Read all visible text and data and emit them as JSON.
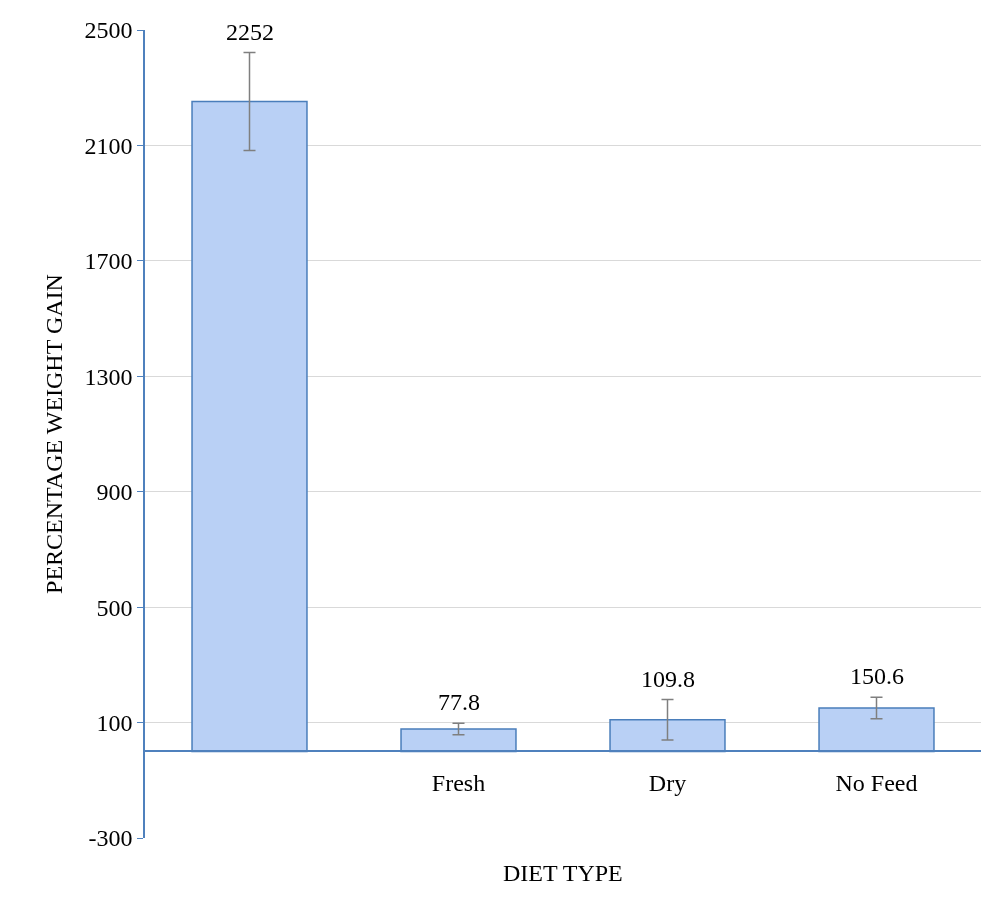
{
  "chart_data": {
    "type": "bar",
    "categories": [
      null,
      "Fresh",
      "Dry",
      "No Feed"
    ],
    "values": [
      2252,
      77.8,
      109.8,
      150.6
    ],
    "errors": [
      170,
      20,
      70,
      37
    ],
    "color": "#b9d0f5",
    "xlabel": "DIET TYPE",
    "ylabel": "PERCENTAGE WEIGHT GAIN",
    "ylim": [
      -300,
      2500
    ],
    "yticks": [
      -300,
      100,
      500,
      900,
      1300,
      1700,
      2100,
      2500
    ],
    "grid": "y",
    "data_labels": true,
    "legend": false
  }
}
